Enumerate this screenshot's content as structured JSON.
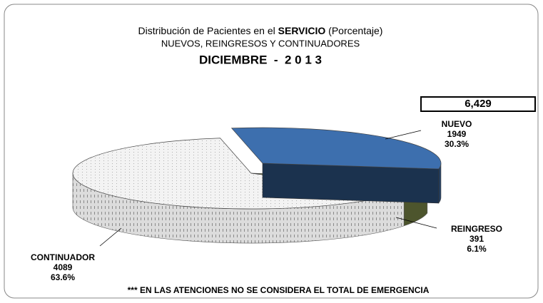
{
  "chart_data": {
    "type": "pie",
    "title": [
      "Distribución de Pacientes en el ",
      "SERVICIO",
      " (Porcentaje)"
    ],
    "subtitle": "NUEVOS, REINGRESOS Y CONTINUADORES",
    "period": "DICIEMBRE  -  2 0 1 3",
    "total": "6,429",
    "categories": [
      "NUEVO",
      "REINGRESO",
      "CONTINUADOR"
    ],
    "values": [
      1949,
      391,
      4089
    ],
    "percent_labels": [
      "30.3%",
      "6.1%",
      "63.6%"
    ],
    "colors": [
      "#3d6fae",
      "#8c9a52",
      "#efefef"
    ],
    "footnote": "*** EN LAS ATENCIONES NO SE CONSIDERA EL TOTAL DE EMERGENCIA"
  }
}
